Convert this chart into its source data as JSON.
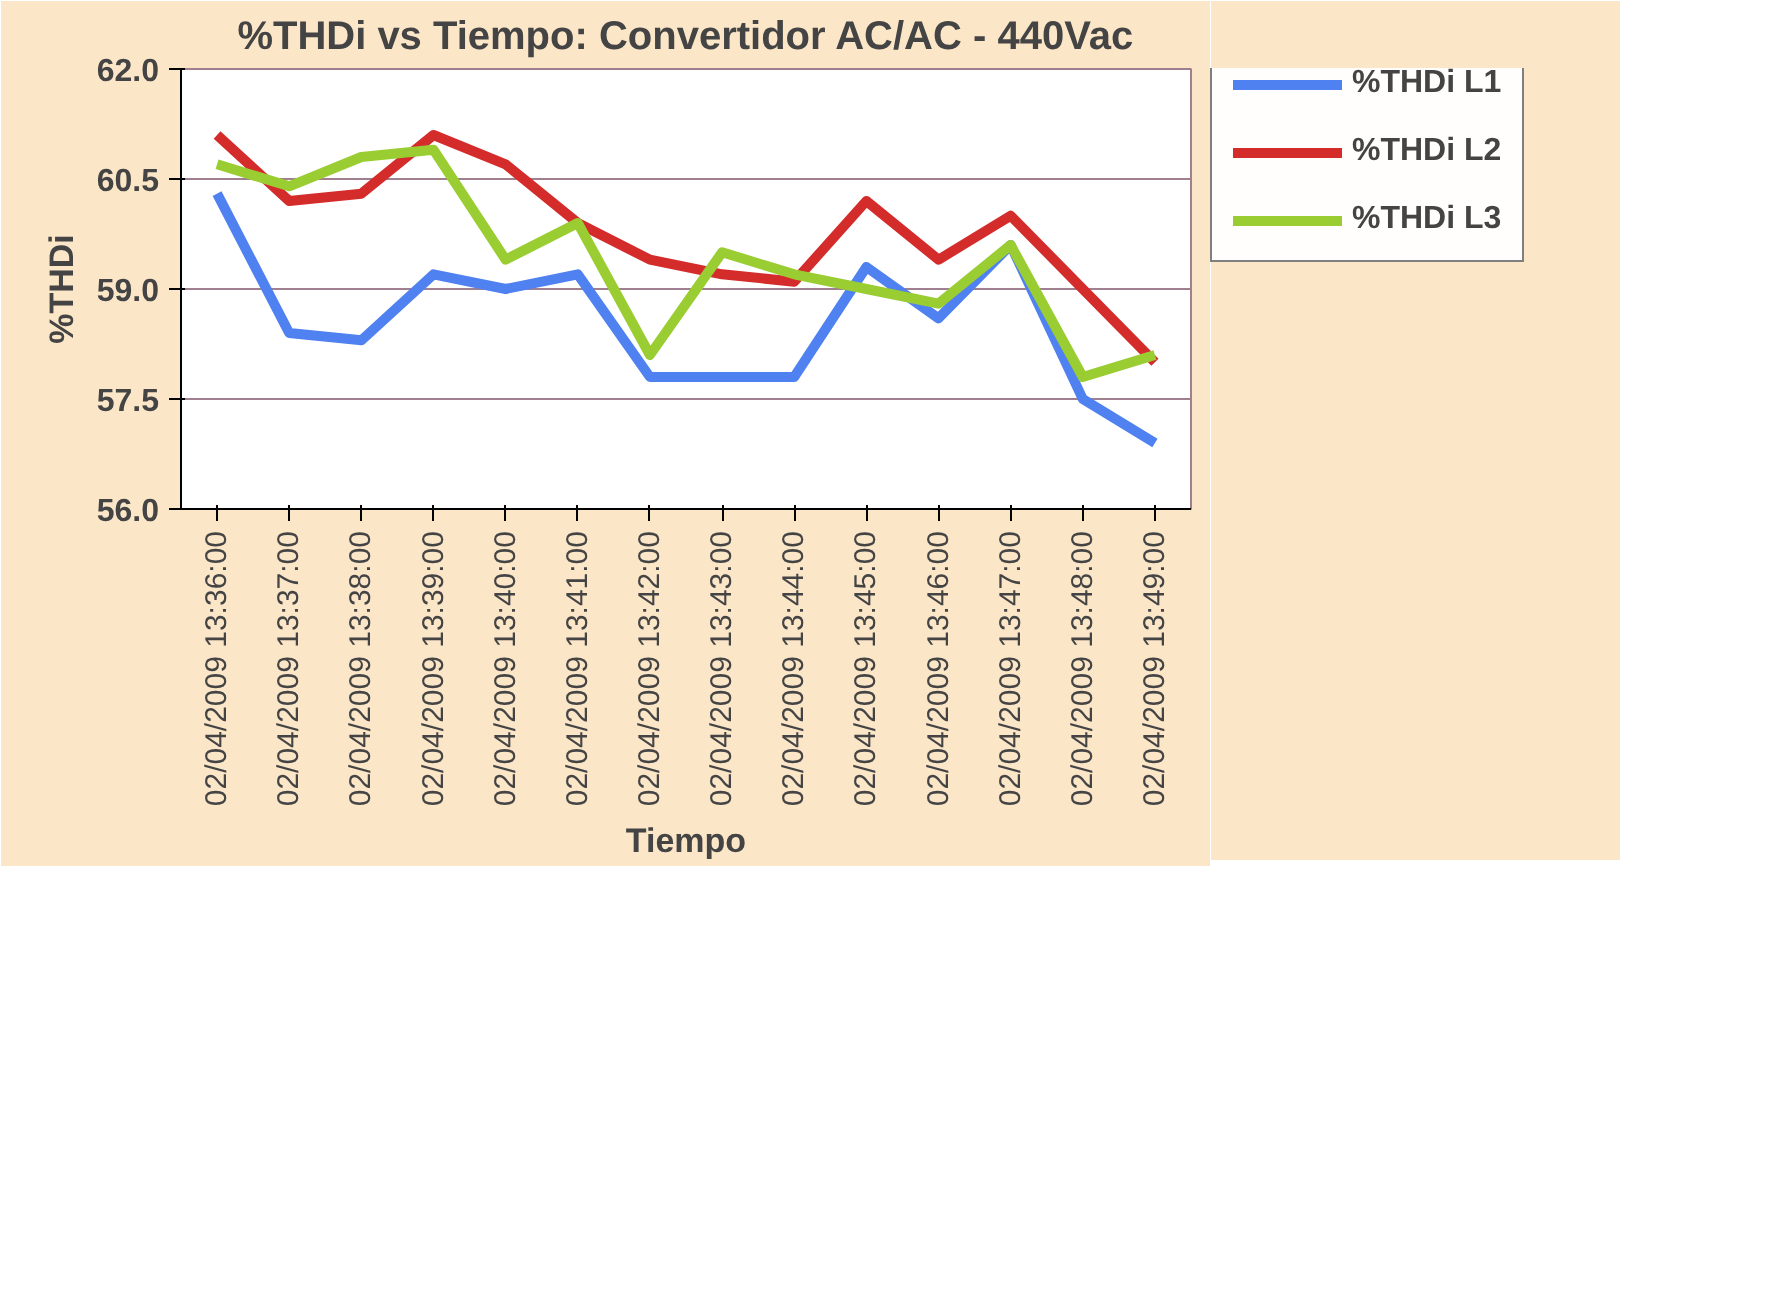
{
  "chart_data": {
    "type": "line",
    "title": "%THDi vs Tiempo: Convertidor AC/AC - 440Vac",
    "xlabel": "Tiempo",
    "ylabel": "%THDi",
    "categories": [
      "02/04/2009 13:36:00",
      "02/04/2009 13:37:00",
      "02/04/2009 13:38:00",
      "02/04/2009 13:39:00",
      "02/04/2009 13:40:00",
      "02/04/2009 13:41:00",
      "02/04/2009 13:42:00",
      "02/04/2009 13:43:00",
      "02/04/2009 13:44:00",
      "02/04/2009 13:45:00",
      "02/04/2009 13:46:00",
      "02/04/2009 13:47:00",
      "02/04/2009 13:48:00",
      "02/04/2009 13:49:00"
    ],
    "series": [
      {
        "name": "%THDi L1",
        "color": "#4f81f0",
        "values": [
          60.3,
          58.4,
          58.3,
          59.2,
          59.0,
          59.2,
          57.8,
          57.8,
          57.8,
          59.3,
          58.6,
          59.6,
          57.5,
          56.9
        ]
      },
      {
        "name": "%THDi L2",
        "color": "#d42b2b",
        "values": [
          61.1,
          60.2,
          60.3,
          61.1,
          60.7,
          59.9,
          59.4,
          59.2,
          59.1,
          60.2,
          59.4,
          60.0,
          59.0,
          58.0
        ]
      },
      {
        "name": "%THDi L3",
        "color": "#9acd32",
        "values": [
          60.7,
          60.4,
          60.8,
          60.9,
          59.4,
          59.9,
          58.1,
          59.5,
          59.2,
          59.0,
          58.8,
          59.6,
          57.8,
          58.1
        ]
      }
    ],
    "ylim": [
      56,
      62
    ],
    "yticks": [
      {
        "value": 56,
        "label": "56.0"
      },
      {
        "value": 57.5,
        "label": "57.5"
      },
      {
        "value": 59,
        "label": "59.0"
      },
      {
        "value": 60.5,
        "label": "60.5"
      },
      {
        "value": 62,
        "label": "62.0"
      }
    ],
    "grid": "y",
    "legend": "right",
    "line_style": "solid",
    "marker": "none"
  }
}
